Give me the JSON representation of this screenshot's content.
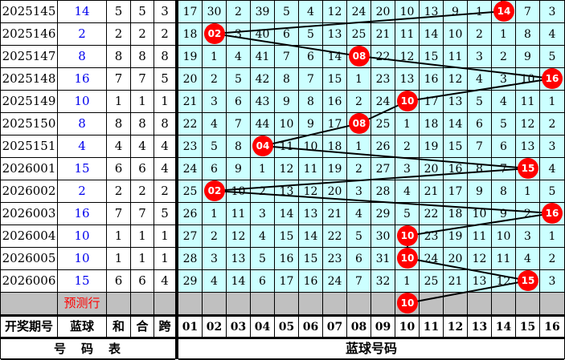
{
  "colors": {
    "grid_bg": "#CCFFFF",
    "row_gray": "#C0C0C0",
    "circle_red": "#FF0000",
    "blue_text": "#0000EE",
    "line": "#000000"
  },
  "chart_data": {
    "type": "table",
    "left_header": {
      "period": "开奖期号",
      "blue": "蓝球",
      "sum": "和",
      "he": "合",
      "span": "跨"
    },
    "left_footer": "号　码　表",
    "grid_footer": "蓝球号码",
    "prediction_label": "预测行",
    "grid_header": [
      "01",
      "02",
      "03",
      "04",
      "05",
      "06",
      "07",
      "08",
      "09",
      "10",
      "11",
      "12",
      "13",
      "14",
      "15",
      "16"
    ],
    "rows": [
      {
        "period": "2025145",
        "blue": "14",
        "sum": "5",
        "he": "5",
        "span": "3",
        "cells": [
          "17",
          "30",
          "2",
          "39",
          "5",
          "4",
          "12",
          "24",
          "20",
          "10",
          "13",
          "9",
          "1",
          "",
          "7",
          "3"
        ]
      },
      {
        "period": "2025146",
        "blue": "2",
        "sum": "2",
        "he": "2",
        "span": "2",
        "cells": [
          "18",
          "",
          "3",
          "40",
          "6",
          "5",
          "13",
          "25",
          "21",
          "11",
          "14",
          "10",
          "2",
          "1",
          "8",
          "4"
        ]
      },
      {
        "period": "2025147",
        "blue": "8",
        "sum": "8",
        "he": "8",
        "span": "8",
        "cells": [
          "19",
          "1",
          "4",
          "41",
          "7",
          "6",
          "14",
          "",
          "22",
          "12",
          "15",
          "11",
          "3",
          "2",
          "9",
          "5"
        ]
      },
      {
        "period": "2025148",
        "blue": "16",
        "sum": "7",
        "he": "7",
        "span": "5",
        "cells": [
          "20",
          "2",
          "5",
          "42",
          "8",
          "7",
          "15",
          "1",
          "23",
          "13",
          "16",
          "12",
          "4",
          "3",
          "10",
          ""
        ]
      },
      {
        "period": "2025149",
        "blue": "10",
        "sum": "1",
        "he": "1",
        "span": "1",
        "cells": [
          "21",
          "3",
          "6",
          "43",
          "9",
          "8",
          "16",
          "2",
          "24",
          "",
          "17",
          "13",
          "5",
          "4",
          "11",
          "1"
        ]
      },
      {
        "period": "2025150",
        "blue": "8",
        "sum": "8",
        "he": "8",
        "span": "8",
        "cells": [
          "22",
          "4",
          "7",
          "44",
          "10",
          "9",
          "17",
          "",
          "25",
          "1",
          "18",
          "14",
          "6",
          "5",
          "12",
          "2"
        ]
      },
      {
        "period": "2025151",
        "blue": "4",
        "sum": "4",
        "he": "4",
        "span": "4",
        "cells": [
          "23",
          "5",
          "8",
          "",
          "11",
          "10",
          "18",
          "1",
          "26",
          "2",
          "19",
          "15",
          "7",
          "6",
          "13",
          "3"
        ]
      },
      {
        "period": "2026001",
        "blue": "15",
        "sum": "6",
        "he": "6",
        "span": "4",
        "cells": [
          "24",
          "6",
          "9",
          "1",
          "12",
          "11",
          "19",
          "2",
          "27",
          "3",
          "20",
          "16",
          "8",
          "7",
          "",
          "4"
        ]
      },
      {
        "period": "2026002",
        "blue": "2",
        "sum": "2",
        "he": "2",
        "span": "2",
        "cells": [
          "25",
          "",
          "10",
          "2",
          "13",
          "12",
          "20",
          "3",
          "28",
          "4",
          "21",
          "17",
          "9",
          "8",
          "1",
          "5"
        ]
      },
      {
        "period": "2026003",
        "blue": "16",
        "sum": "7",
        "he": "7",
        "span": "5",
        "cells": [
          "26",
          "1",
          "11",
          "3",
          "14",
          "13",
          "21",
          "4",
          "29",
          "5",
          "22",
          "18",
          "10",
          "9",
          "2",
          ""
        ]
      },
      {
        "period": "2026004",
        "blue": "10",
        "sum": "1",
        "he": "1",
        "span": "1",
        "cells": [
          "27",
          "2",
          "12",
          "4",
          "15",
          "14",
          "22",
          "5",
          "30",
          "",
          "23",
          "19",
          "11",
          "10",
          "3",
          "1"
        ]
      },
      {
        "period": "2026005",
        "blue": "10",
        "sum": "1",
        "he": "1",
        "span": "1",
        "cells": [
          "28",
          "3",
          "13",
          "5",
          "16",
          "15",
          "23",
          "6",
          "31",
          "",
          "24",
          "20",
          "12",
          "11",
          "4",
          "2"
        ]
      },
      {
        "period": "2026006",
        "blue": "15",
        "sum": "6",
        "he": "6",
        "span": "4",
        "cells": [
          "29",
          "4",
          "14",
          "6",
          "17",
          "16",
          "24",
          "7",
          "32",
          "1",
          "25",
          "21",
          "13",
          "12",
          "",
          "3"
        ]
      }
    ],
    "circles": [
      {
        "row": 0,
        "col": 13.8,
        "label": ""
      },
      {
        "row": 1,
        "col": 14,
        "label": "14"
      },
      {
        "row": 2,
        "col": 2,
        "label": "02"
      },
      {
        "row": 3,
        "col": 8,
        "label": "08"
      },
      {
        "row": 4,
        "col": 16,
        "label": "16"
      },
      {
        "row": 5,
        "col": 10,
        "label": "10"
      },
      {
        "row": 6,
        "col": 8,
        "label": "08"
      },
      {
        "row": 7,
        "col": 4,
        "label": "04"
      },
      {
        "row": 8,
        "col": 15,
        "label": "15"
      },
      {
        "row": 9,
        "col": 2,
        "label": "02"
      },
      {
        "row": 10,
        "col": 16,
        "label": "16"
      },
      {
        "row": 11,
        "col": 10,
        "label": "10"
      },
      {
        "row": 12,
        "col": 10,
        "label": "10"
      },
      {
        "row": 13,
        "col": 15,
        "label": "15"
      },
      {
        "row": 14,
        "col": 10,
        "label": "10"
      }
    ]
  }
}
